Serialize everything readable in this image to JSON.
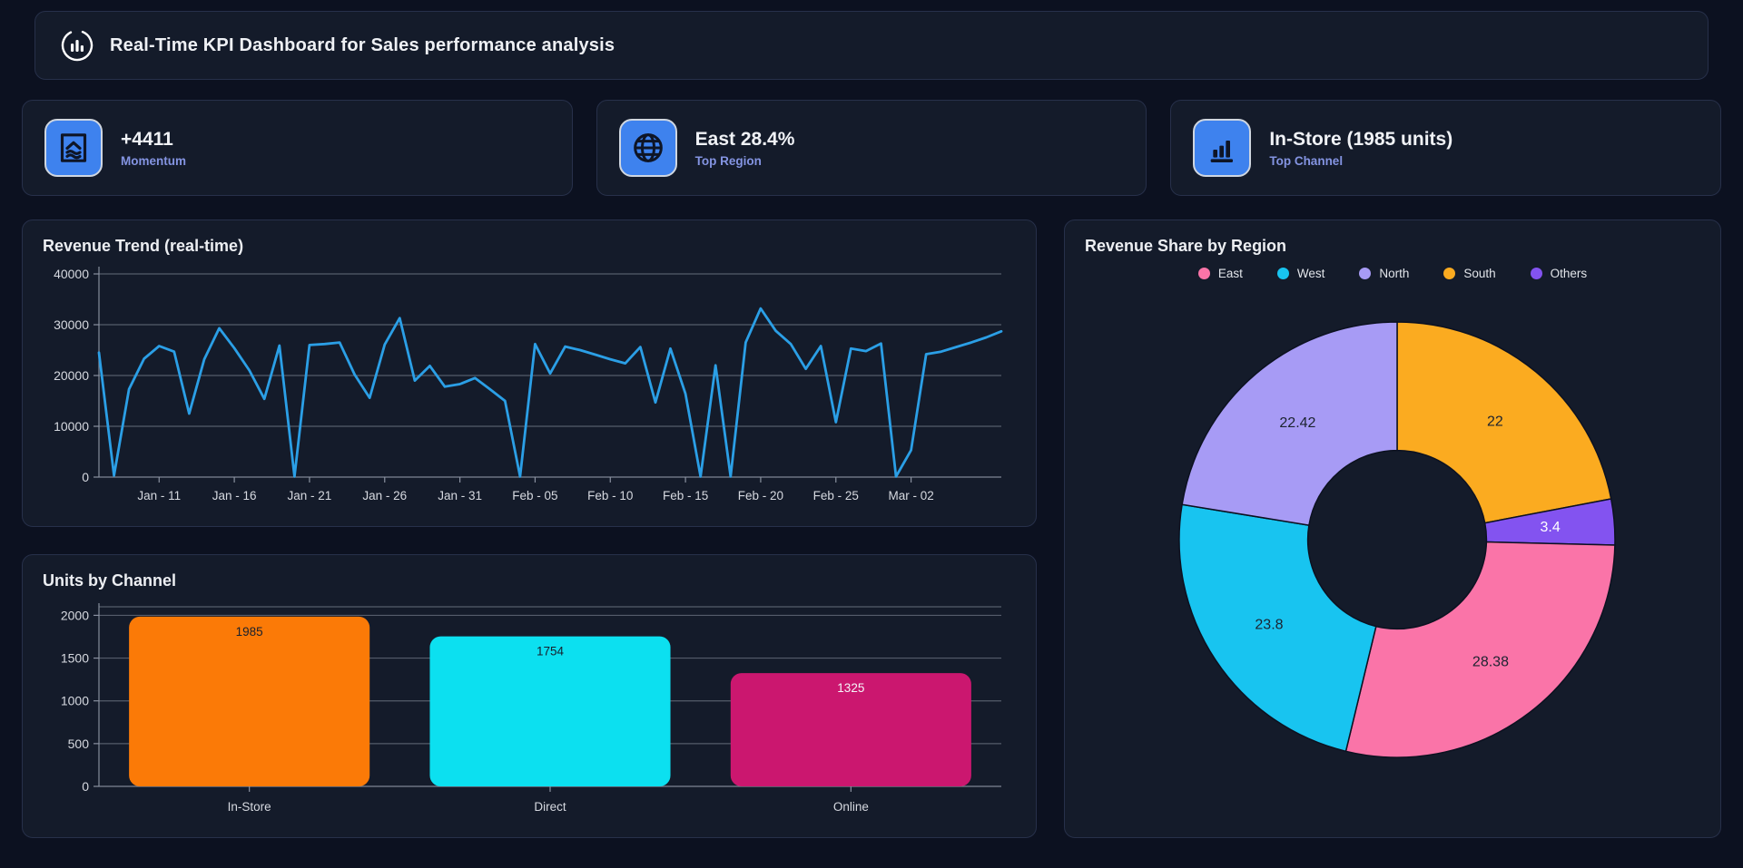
{
  "header": {
    "title": "Real-Time KPI Dashboard for Sales performance analysis"
  },
  "kpi_cards": [
    {
      "icon": "momentum-icon",
      "value": "+4411",
      "label": "Momentum"
    },
    {
      "icon": "globe-icon",
      "value": "East 28.4%",
      "label": "Top Region"
    },
    {
      "icon": "bar-chart-icon",
      "value": "In-Store (1985 units)",
      "label": "Top Channel"
    }
  ],
  "colors": {
    "page_bg": "#0c1120",
    "card_bg": "#141b2a",
    "card_border": "#27304a",
    "icon_tile": "#3e82ee",
    "axis": "#8a91a0",
    "tick_text": "#d6d9e0"
  },
  "chart_data": [
    {
      "type": "line",
      "title": "Revenue Trend (real-time)",
      "line_color": "#2b9fe6",
      "ylim": [
        0,
        40000
      ],
      "yticks": [
        0,
        10000,
        20000,
        30000,
        40000
      ],
      "xtick_labels": [
        "Jan - 11",
        "Jan - 16",
        "Jan - 21",
        "Jan - 26",
        "Jan - 31",
        "Feb - 05",
        "Feb - 10",
        "Feb - 15",
        "Feb - 20",
        "Feb - 25",
        "Mar - 02"
      ],
      "xtick_indices": [
        4,
        9,
        14,
        19,
        24,
        29,
        34,
        39,
        44,
        49,
        54
      ],
      "values": [
        24500,
        300,
        17300,
        23300,
        25800,
        24700,
        12500,
        23200,
        29300,
        25400,
        21000,
        15400,
        25900,
        100,
        26000,
        26200,
        26500,
        20200,
        15600,
        26100,
        31300,
        19000,
        21900,
        17800,
        18300,
        19500,
        17300,
        15000,
        100,
        26200,
        20400,
        25700,
        25000,
        24100,
        23200,
        22400,
        25600,
        14700,
        25300,
        16400,
        100,
        22000,
        100,
        26500,
        33200,
        28800,
        26200,
        21300,
        25800,
        10800,
        25300,
        24800,
        26300,
        100,
        5300,
        24200,
        24700,
        25600,
        26500,
        27500,
        28700
      ]
    },
    {
      "type": "bar",
      "title": "Units by Channel",
      "categories": [
        "In-Store",
        "Direct",
        "Online"
      ],
      "values": [
        1985,
        1754,
        1325
      ],
      "bar_colors": [
        "#fb7a07",
        "#0ce0f0",
        "#cb176f"
      ],
      "value_label_colors": [
        "#18202e",
        "#18202e",
        "#f4f6f9"
      ],
      "ylim": [
        0,
        2100
      ],
      "yticks": [
        0,
        500,
        1000,
        1500,
        2000
      ]
    },
    {
      "type": "donut",
      "title": "Revenue Share by Region",
      "legend": [
        {
          "name": "East",
          "color": "#fa74a8"
        },
        {
          "name": "West",
          "color": "#18c4f0"
        },
        {
          "name": "North",
          "color": "#a79bf5"
        },
        {
          "name": "South",
          "color": "#fbab20"
        },
        {
          "name": "Others",
          "color": "#8353f0"
        }
      ],
      "slices": [
        {
          "name": "South",
          "value": 22,
          "label": "22",
          "color": "#fbab20",
          "label_color": "#1c2330"
        },
        {
          "name": "Others",
          "value": 3.4,
          "label": "3.4",
          "color": "#8353f0",
          "label_color": "#ffffff"
        },
        {
          "name": "East",
          "value": 28.38,
          "label": "28.38",
          "color": "#fa74a8",
          "label_color": "#1c2330"
        },
        {
          "name": "West",
          "value": 23.8,
          "label": "23.8",
          "color": "#18c4f0",
          "label_color": "#1c2330"
        },
        {
          "name": "North",
          "value": 22.42,
          "label": "22.42",
          "color": "#a79bf5",
          "label_color": "#1c2330"
        }
      ],
      "inner_radius_ratio": 0.41,
      "start_angle": 0
    }
  ]
}
